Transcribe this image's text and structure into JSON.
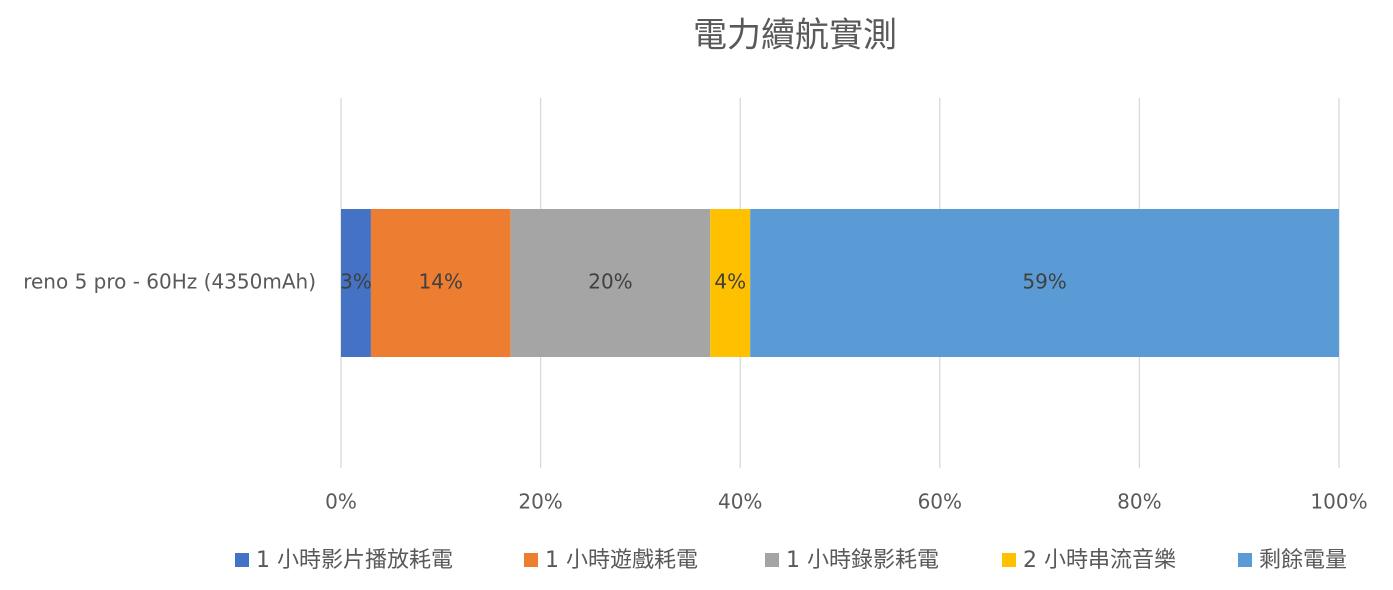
{
  "chart_data": {
    "type": "bar",
    "orientation": "horizontal",
    "stacked": true,
    "title": "電力續航實測",
    "categories": [
      "reno 5 pro - 60Hz (4350mAh)"
    ],
    "series": [
      {
        "name": "1 小時影片播放耗電",
        "color": "#4472c4",
        "values": [
          3
        ],
        "value_labels": [
          "3%"
        ]
      },
      {
        "name": "1 小時遊戲耗電",
        "color": "#ed7d31",
        "values": [
          14
        ],
        "value_labels": [
          "14%"
        ]
      },
      {
        "name": "1 小時錄影耗電",
        "color": "#a5a5a5",
        "values": [
          20
        ],
        "value_labels": [
          "20%"
        ]
      },
      {
        "name": "2 小時串流音樂",
        "color": "#ffc000",
        "values": [
          4
        ],
        "value_labels": [
          "4%"
        ]
      },
      {
        "name": "剩餘電量",
        "color": "#5b9bd5",
        "values": [
          59
        ],
        "value_labels": [
          "59%"
        ]
      }
    ],
    "xlim": [
      0,
      100
    ],
    "xticks": [
      {
        "value": 0,
        "label": "0%"
      },
      {
        "value": 20,
        "label": "20%"
      },
      {
        "value": 40,
        "label": "40%"
      },
      {
        "value": 60,
        "label": "60%"
      },
      {
        "value": 80,
        "label": "80%"
      },
      {
        "value": 100,
        "label": "100%"
      }
    ],
    "grid": true,
    "legend": "bottom"
  }
}
